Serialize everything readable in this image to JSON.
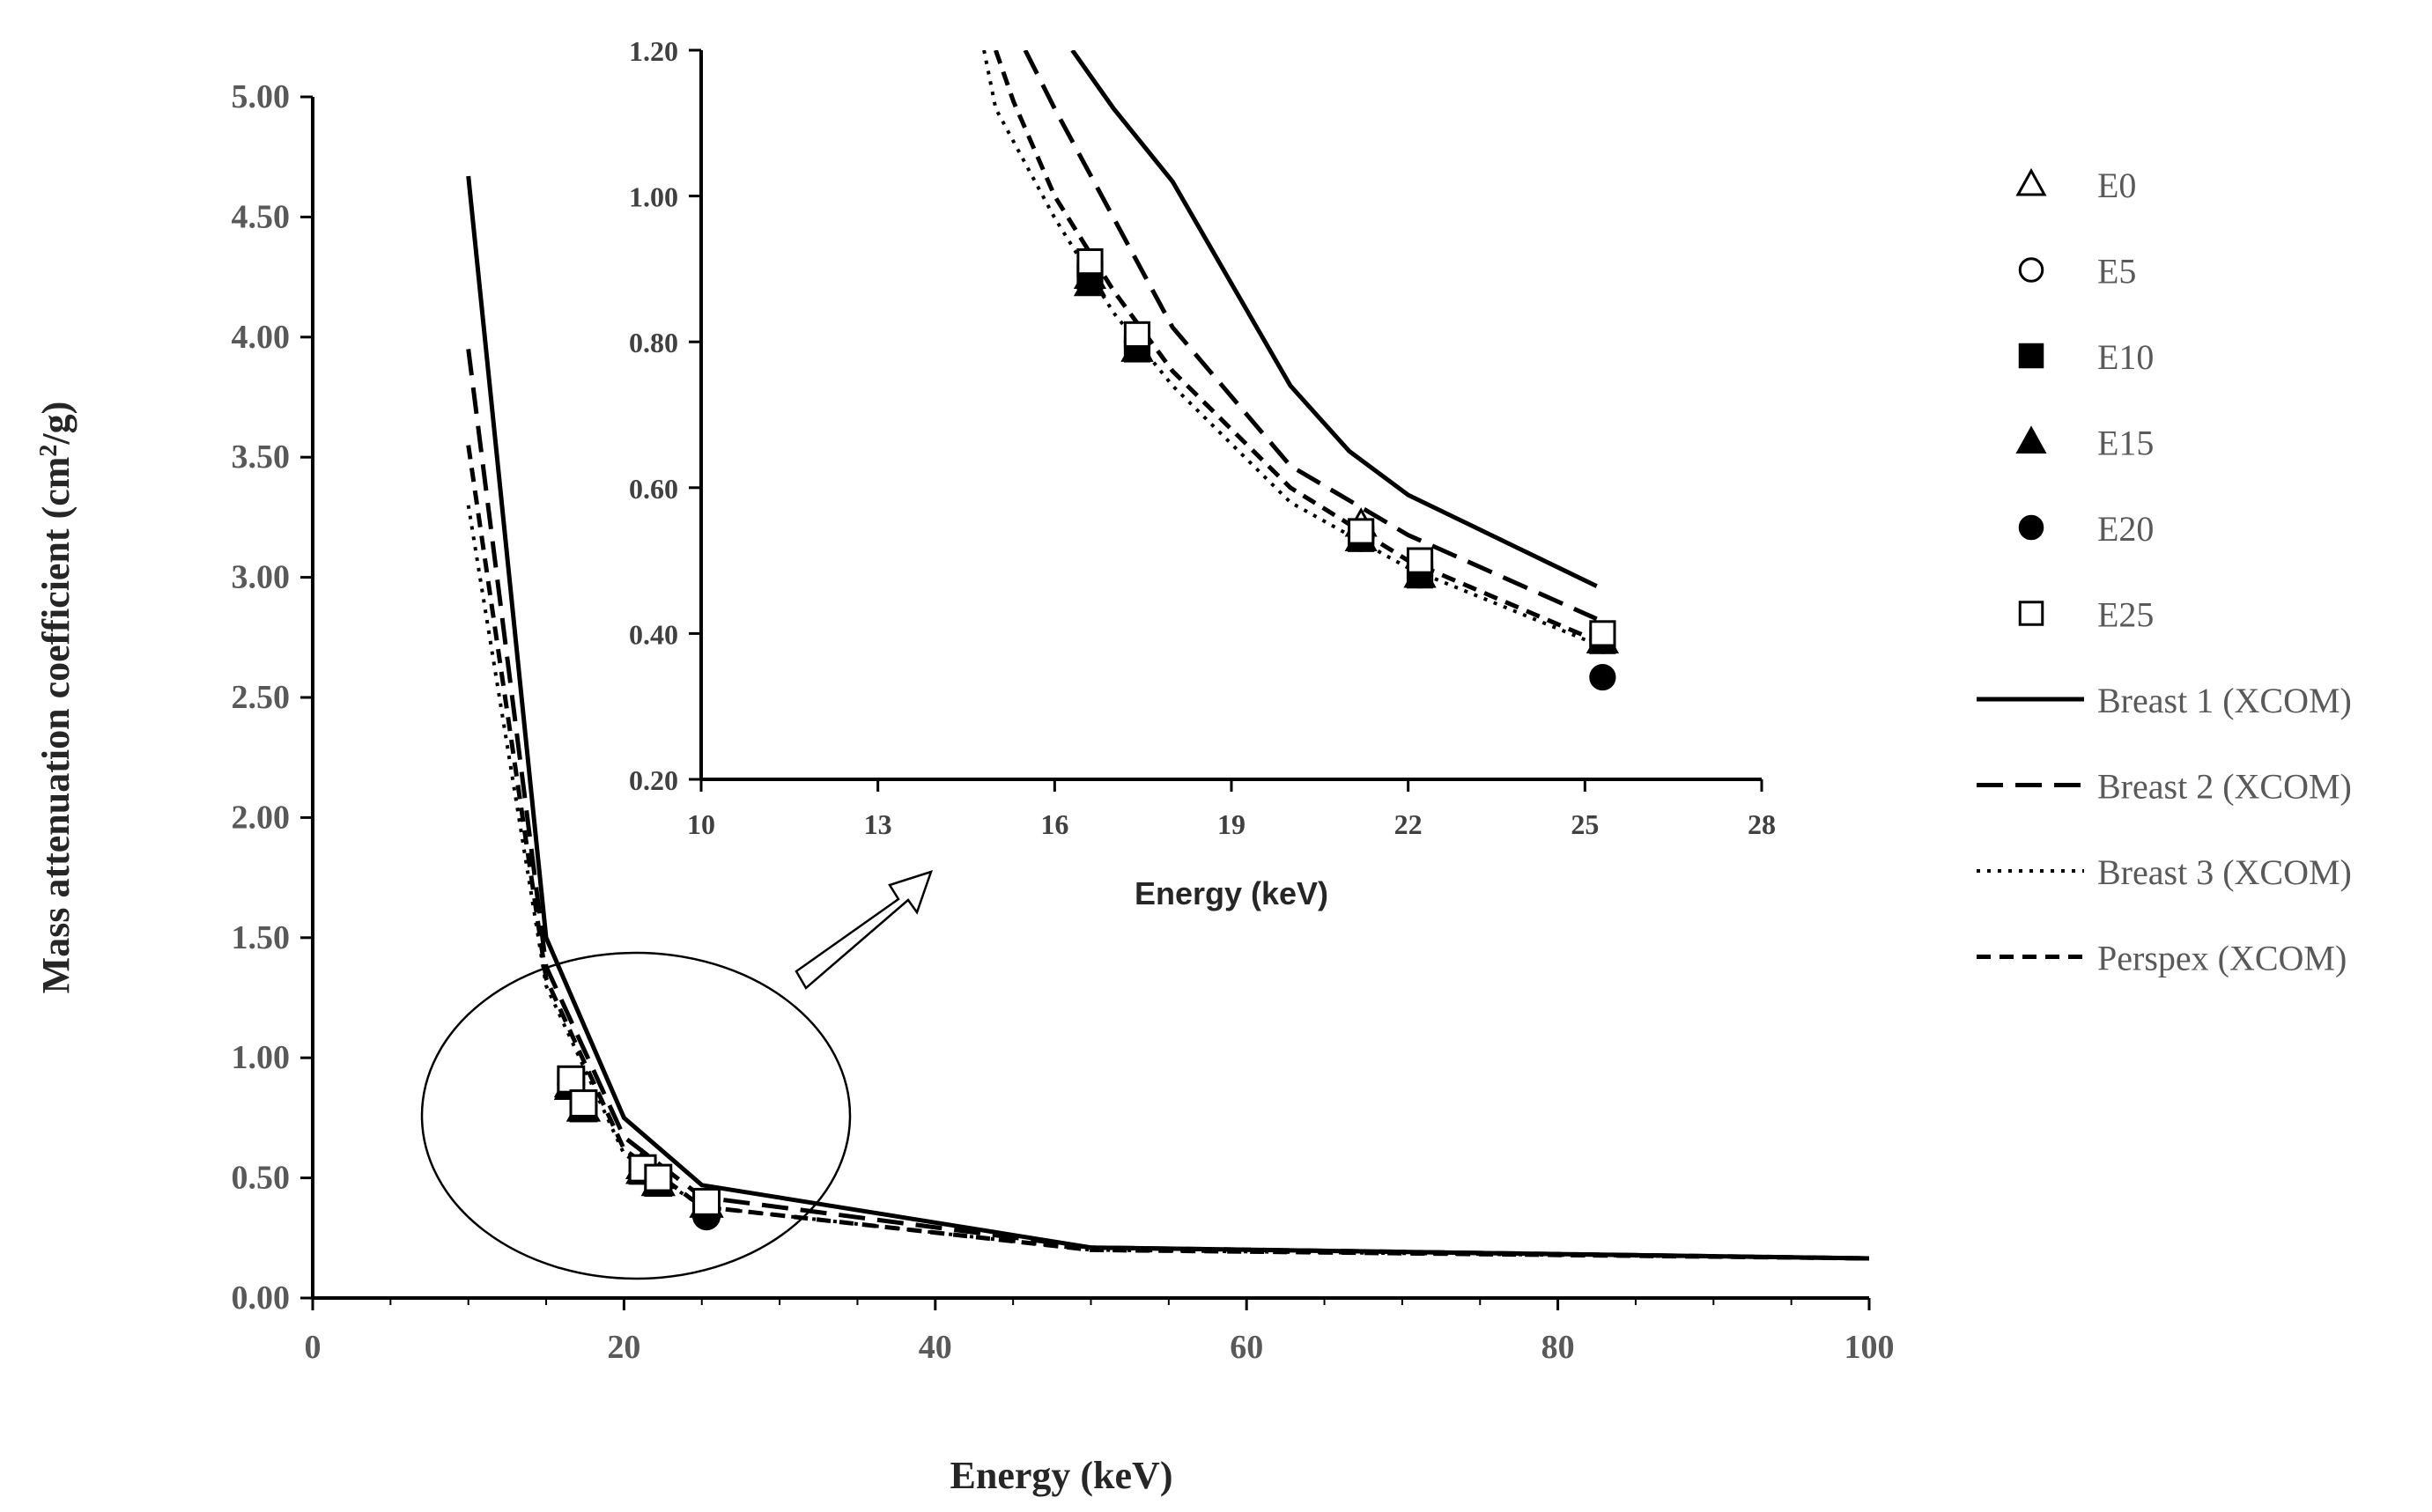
{
  "chart_data": [
    {
      "id": "main",
      "type": "line",
      "title": "",
      "xlabel": "Energy (keV)",
      "ylabel": "Mass attenuation coefficient (cm²/g)",
      "ylabel_prefix": "Mass attenuation coefficient (cm",
      "ylabel_sup": "2",
      "ylabel_suffix": "/g)",
      "xlim": [
        0,
        100
      ],
      "ylim": [
        0,
        5
      ],
      "xticks": [
        "0",
        "20",
        "40",
        "60",
        "80",
        "100"
      ],
      "yticks": [
        "0.00",
        "0.50",
        "1.00",
        "1.50",
        "2.00",
        "2.50",
        "3.00",
        "3.50",
        "4.00",
        "4.50",
        "5.00"
      ],
      "series": [
        {
          "name": "Breast 1 (XCOM)",
          "style": "solid",
          "x": [
            10,
            15,
            20,
            25,
            50,
            100
          ],
          "y": [
            4.67,
            1.5,
            0.75,
            0.47,
            0.21,
            0.165
          ]
        },
        {
          "name": "Breast 2 (XCOM)",
          "style": "dashed",
          "x": [
            10,
            15,
            20,
            25,
            50,
            100
          ],
          "y": [
            3.95,
            1.38,
            0.67,
            0.42,
            0.21,
            0.165
          ]
        },
        {
          "name": "Breast 3 (XCOM)",
          "style": "dotted",
          "x": [
            10,
            15,
            20,
            25,
            50,
            100
          ],
          "y": [
            3.3,
            1.3,
            0.6,
            0.38,
            0.2,
            0.165
          ]
        },
        {
          "name": "Perspex (XCOM)",
          "style": "short-dashed",
          "x": [
            10,
            15,
            20,
            25,
            50,
            100
          ],
          "y": [
            3.55,
            1.33,
            0.62,
            0.38,
            0.2,
            0.165
          ]
        }
      ],
      "points": [
        {
          "name": "E0",
          "x": [
            16.6,
            17.4,
            21.2,
            22.2,
            25.3
          ],
          "y": [
            0.89,
            0.79,
            0.55,
            0.48,
            0.39
          ]
        },
        {
          "name": "E5",
          "x": [
            16.6,
            17.4,
            21.2,
            22.2,
            25.3
          ],
          "y": [
            0.89,
            0.8,
            0.54,
            0.49,
            0.39
          ]
        },
        {
          "name": "E10",
          "x": [
            16.6,
            17.4,
            21.2,
            22.2,
            25.3
          ],
          "y": [
            0.89,
            0.79,
            0.53,
            0.48,
            0.39
          ]
        },
        {
          "name": "E15",
          "x": [
            16.6,
            17.4,
            21.2,
            22.2,
            25.3
          ],
          "y": [
            0.88,
            0.79,
            0.53,
            0.48,
            0.39
          ]
        },
        {
          "name": "E20",
          "x": [
            16.6,
            17.4,
            21.2,
            22.2,
            25.3
          ],
          "y": [
            0.89,
            0.8,
            0.53,
            0.48,
            0.34
          ]
        },
        {
          "name": "E25",
          "x": [
            16.6,
            17.4,
            21.2,
            22.2,
            25.3
          ],
          "y": [
            0.91,
            0.81,
            0.54,
            0.5,
            0.4
          ]
        }
      ]
    },
    {
      "id": "inset",
      "type": "line",
      "title": "",
      "xlabel": "Energy (keV)",
      "ylabel": "",
      "xlim": [
        10,
        28
      ],
      "ylim": [
        0.2,
        1.2
      ],
      "xticks": [
        "10",
        "13",
        "16",
        "19",
        "22",
        "25",
        "28"
      ],
      "yticks": [
        "0.20",
        "0.40",
        "0.60",
        "0.80",
        "1.00",
        "1.20"
      ],
      "series": [
        {
          "name": "Breast 1 (XCOM)",
          "style": "solid",
          "x": [
            16.3,
            17,
            18,
            20,
            21,
            22,
            25.2
          ],
          "y": [
            1.2,
            1.12,
            1.02,
            0.74,
            0.65,
            0.59,
            0.465
          ]
        },
        {
          "name": "Breast 2 (XCOM)",
          "style": "dashed",
          "x": [
            15.5,
            16,
            18,
            20,
            22,
            25.2
          ],
          "y": [
            1.2,
            1.12,
            0.82,
            0.63,
            0.535,
            0.42
          ]
        },
        {
          "name": "Breast 3 (XCOM)",
          "style": "dotted",
          "x": [
            14.8,
            15,
            16,
            17,
            18,
            20,
            22,
            25.2
          ],
          "y": [
            1.2,
            1.12,
            0.97,
            0.84,
            0.74,
            0.58,
            0.49,
            0.385
          ]
        },
        {
          "name": "Perspex (XCOM)",
          "style": "short-dashed",
          "x": [
            15,
            15.3,
            16,
            17,
            18,
            20,
            22,
            25.2
          ],
          "y": [
            1.2,
            1.13,
            1.0,
            0.87,
            0.76,
            0.6,
            0.5,
            0.39
          ]
        }
      ],
      "points": [
        {
          "name": "E0",
          "x": [
            16.6,
            17.4,
            21.2,
            22.2,
            25.3
          ],
          "y": [
            0.89,
            0.79,
            0.55,
            0.48,
            0.39
          ]
        },
        {
          "name": "E5",
          "x": [
            16.6,
            17.4,
            21.2,
            22.2,
            25.3
          ],
          "y": [
            0.89,
            0.8,
            0.54,
            0.49,
            0.39
          ]
        },
        {
          "name": "E10",
          "x": [
            16.6,
            17.4,
            21.2,
            22.2,
            25.3
          ],
          "y": [
            0.89,
            0.79,
            0.53,
            0.48,
            0.39
          ]
        },
        {
          "name": "E15",
          "x": [
            16.6,
            17.4,
            21.2,
            22.2,
            25.3
          ],
          "y": [
            0.88,
            0.79,
            0.53,
            0.48,
            0.39
          ]
        },
        {
          "name": "E20",
          "x": [
            16.6,
            17.4,
            21.2,
            22.2,
            25.3
          ],
          "y": [
            0.89,
            0.8,
            0.53,
            0.48,
            0.34
          ]
        },
        {
          "name": "E25",
          "x": [
            16.6,
            17.4,
            21.2,
            22.2,
            25.3
          ],
          "y": [
            0.91,
            0.81,
            0.54,
            0.5,
            0.4
          ]
        }
      ]
    }
  ],
  "legend": {
    "placement": "right",
    "items": [
      {
        "label": "E0",
        "marker": "triangle-open"
      },
      {
        "label": "E5",
        "marker": "circle-open"
      },
      {
        "label": "E10",
        "marker": "square-filled"
      },
      {
        "label": "E15",
        "marker": "triangle-filled"
      },
      {
        "label": "E20",
        "marker": "circle-filled"
      },
      {
        "label": "E25",
        "marker": "square-open"
      },
      {
        "label": "Breast 1 (XCOM)",
        "line": "solid"
      },
      {
        "label": "Breast 2 (XCOM)",
        "line": "dashed"
      },
      {
        "label": "Breast 3 (XCOM)",
        "line": "dotted"
      },
      {
        "label": "Perspex (XCOM)",
        "line": "short-dashed"
      }
    ]
  },
  "colors": {
    "line": "#000000",
    "tick_text": "#595959",
    "axis": "#000000"
  }
}
